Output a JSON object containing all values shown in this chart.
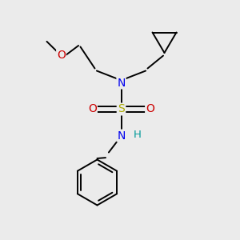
{
  "bg_color": "#ebebeb",
  "atom_N": "#0000ee",
  "atom_O": "#cc0000",
  "atom_S": "#aaaa00",
  "atom_H": "#009999",
  "atom_C": "#000000",
  "bond_color": "#000000",
  "bond_lw": 1.4,
  "fig_w": 3.0,
  "fig_h": 3.0,
  "dpi": 100,
  "xlim": [
    0,
    10
  ],
  "ylim": [
    0,
    10
  ]
}
